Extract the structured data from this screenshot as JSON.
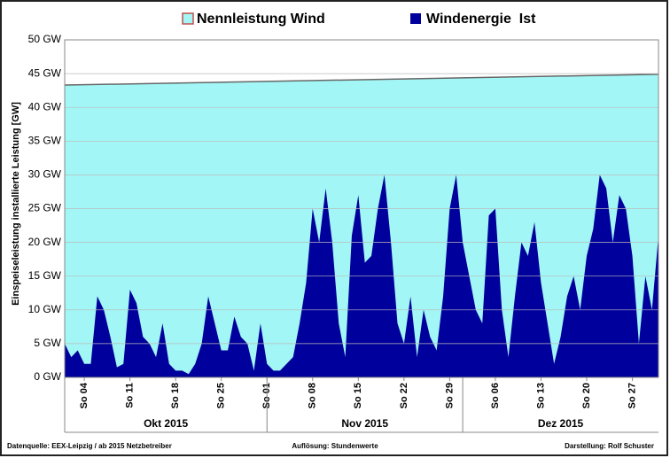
{
  "chart_data": {
    "type": "area",
    "y_label": "Einspeiseleistung installierte Leistung [GW]",
    "x": [
      "2015-10-01",
      "2015-10-02",
      "2015-10-03",
      "2015-10-04",
      "2015-10-05",
      "2015-10-06",
      "2015-10-07",
      "2015-10-08",
      "2015-10-09",
      "2015-10-10",
      "2015-10-11",
      "2015-10-12",
      "2015-10-13",
      "2015-10-14",
      "2015-10-15",
      "2015-10-16",
      "2015-10-17",
      "2015-10-18",
      "2015-10-19",
      "2015-10-20",
      "2015-10-21",
      "2015-10-22",
      "2015-10-23",
      "2015-10-24",
      "2015-10-25",
      "2015-10-26",
      "2015-10-27",
      "2015-10-28",
      "2015-10-29",
      "2015-10-30",
      "2015-10-31",
      "2015-11-01",
      "2015-11-02",
      "2015-11-03",
      "2015-11-04",
      "2015-11-05",
      "2015-11-06",
      "2015-11-07",
      "2015-11-08",
      "2015-11-09",
      "2015-11-10",
      "2015-11-11",
      "2015-11-12",
      "2015-11-13",
      "2015-11-14",
      "2015-11-15",
      "2015-11-16",
      "2015-11-17",
      "2015-11-18",
      "2015-11-19",
      "2015-11-20",
      "2015-11-21",
      "2015-11-22",
      "2015-11-23",
      "2015-11-24",
      "2015-11-25",
      "2015-11-26",
      "2015-11-27",
      "2015-11-28",
      "2015-11-29",
      "2015-11-30",
      "2015-12-01",
      "2015-12-02",
      "2015-12-03",
      "2015-12-04",
      "2015-12-05",
      "2015-12-06",
      "2015-12-07",
      "2015-12-08",
      "2015-12-09",
      "2015-12-10",
      "2015-12-11",
      "2015-12-12",
      "2015-12-13",
      "2015-12-14",
      "2015-12-15",
      "2015-12-16",
      "2015-12-17",
      "2015-12-18",
      "2015-12-19",
      "2015-12-20",
      "2015-12-21",
      "2015-12-22",
      "2015-12-23",
      "2015-12-24",
      "2015-12-25",
      "2015-12-26",
      "2015-12-27",
      "2015-12-28",
      "2015-12-29",
      "2015-12-30",
      "2015-12-31"
    ],
    "xlim": [
      "2015-10-01",
      "2015-12-31"
    ],
    "xticks": [
      {
        "value": "2015-10-04",
        "label": "So 04"
      },
      {
        "value": "2015-10-11",
        "label": "So 11"
      },
      {
        "value": "2015-10-18",
        "label": "So 18"
      },
      {
        "value": "2015-10-25",
        "label": "So 25"
      },
      {
        "value": "2015-11-01",
        "label": "So 01"
      },
      {
        "value": "2015-11-08",
        "label": "So 08"
      },
      {
        "value": "2015-11-15",
        "label": "So 15"
      },
      {
        "value": "2015-11-22",
        "label": "So 22"
      },
      {
        "value": "2015-11-29",
        "label": "So 29"
      },
      {
        "value": "2015-12-06",
        "label": "So 06"
      },
      {
        "value": "2015-12-13",
        "label": "So 13"
      },
      {
        "value": "2015-12-20",
        "label": "So 20"
      },
      {
        "value": "2015-12-27",
        "label": "So 27"
      }
    ],
    "months": [
      "Okt 2015",
      "Nov 2015",
      "Dez 2015"
    ],
    "ylim": [
      0,
      50
    ],
    "yticks": [
      {
        "value": 0,
        "label": "0 GW"
      },
      {
        "value": 5,
        "label": "5 GW"
      },
      {
        "value": 10,
        "label": "10 GW"
      },
      {
        "value": 15,
        "label": "15 GW"
      },
      {
        "value": 20,
        "label": "20 GW"
      },
      {
        "value": 25,
        "label": "25 GW"
      },
      {
        "value": 30,
        "label": "30 GW"
      },
      {
        "value": 35,
        "label": "35 GW"
      },
      {
        "value": 40,
        "label": "40 GW"
      },
      {
        "value": 45,
        "label": "45 GW"
      },
      {
        "value": 50,
        "label": "50 GW"
      }
    ],
    "grid": true,
    "series": [
      {
        "name": "Nennleistung Wind",
        "color": "#a3f6f6",
        "edge_color": "#c0504d",
        "x": [
          "2015-10-01",
          "2015-12-31"
        ],
        "values": [
          43.3,
          44.9
        ]
      },
      {
        "name": "Windenergie  Ist",
        "color": "#00009c",
        "values": [
          5,
          3,
          4,
          2,
          2,
          12,
          10,
          6,
          1.5,
          2,
          13,
          11,
          6,
          5,
          3,
          8,
          2,
          1,
          1,
          0.5,
          2,
          5,
          12,
          8,
          4,
          4,
          9,
          6,
          5,
          1,
          8,
          2,
          1,
          1,
          2,
          3,
          8,
          14,
          25,
          20,
          28,
          20,
          8,
          3,
          21,
          27,
          17,
          18,
          25,
          30,
          20,
          8,
          5,
          12,
          3,
          10,
          6,
          4,
          12,
          25,
          30,
          20,
          15,
          10,
          8,
          24,
          25,
          10,
          3,
          12,
          20,
          18,
          23,
          14,
          8,
          2,
          6,
          12,
          15,
          10,
          18,
          22,
          30,
          28,
          20,
          27,
          25,
          18,
          5,
          15,
          10,
          21
        ]
      }
    ]
  },
  "footer": {
    "source": "Datenquelle:  EEX-Leipzig  / ab 2015 Netzbetreiber",
    "resolution": "Auflösung: Stundenwerte",
    "author": "Darstellung: Rolf Schuster"
  }
}
